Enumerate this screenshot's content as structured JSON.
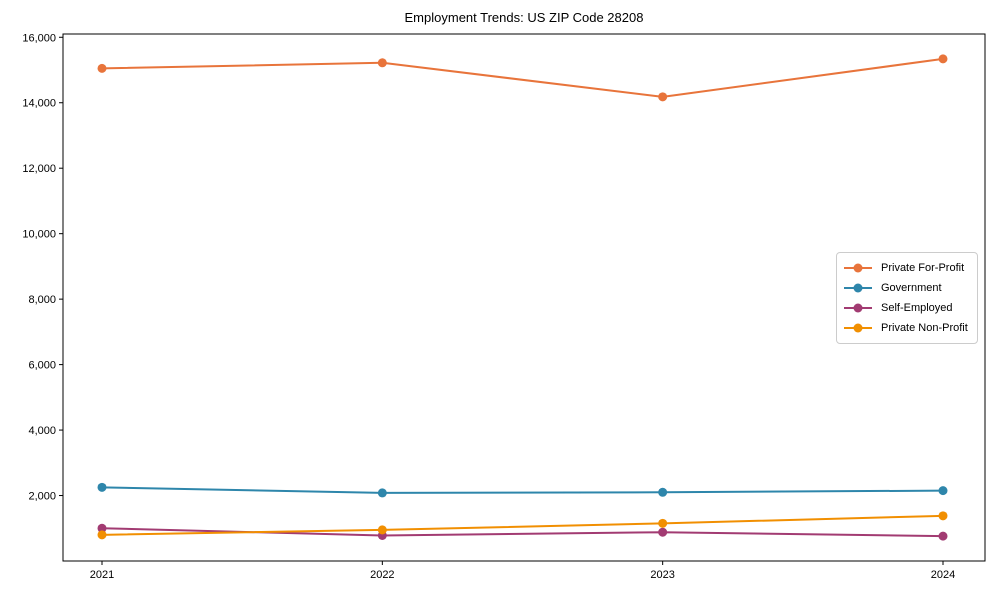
{
  "figure": {
    "background": "#ffffff",
    "axis_color": "#000000",
    "text_color": "#000000",
    "legend_border_color": "#cccccc"
  },
  "chart_data": {
    "type": "line",
    "title": "Employment Trends: US ZIP Code 28208",
    "x": [
      2021,
      2022,
      2023,
      2024
    ],
    "x_tick_labels": [
      "2021",
      "2022",
      "2023",
      "2024"
    ],
    "series": [
      {
        "name": "Private For-Profit",
        "color": "#E8743B",
        "values": [
          15050,
          15220,
          14180,
          15340
        ]
      },
      {
        "name": "Government",
        "color": "#2E86AB",
        "values": [
          2250,
          2080,
          2100,
          2150
        ]
      },
      {
        "name": "Self-Employed",
        "color": "#A23B72",
        "values": [
          1000,
          780,
          880,
          760
        ]
      },
      {
        "name": "Private Non-Profit",
        "color": "#F18F01",
        "values": [
          800,
          950,
          1150,
          1380
        ]
      }
    ],
    "xlabel": "",
    "ylabel": "",
    "ylim": [
      0,
      16100
    ],
    "yticks": [
      2000,
      4000,
      6000,
      8000,
      10000,
      12000,
      14000,
      16000
    ],
    "grid": false,
    "marker": "circle",
    "legend_position": "center right"
  }
}
